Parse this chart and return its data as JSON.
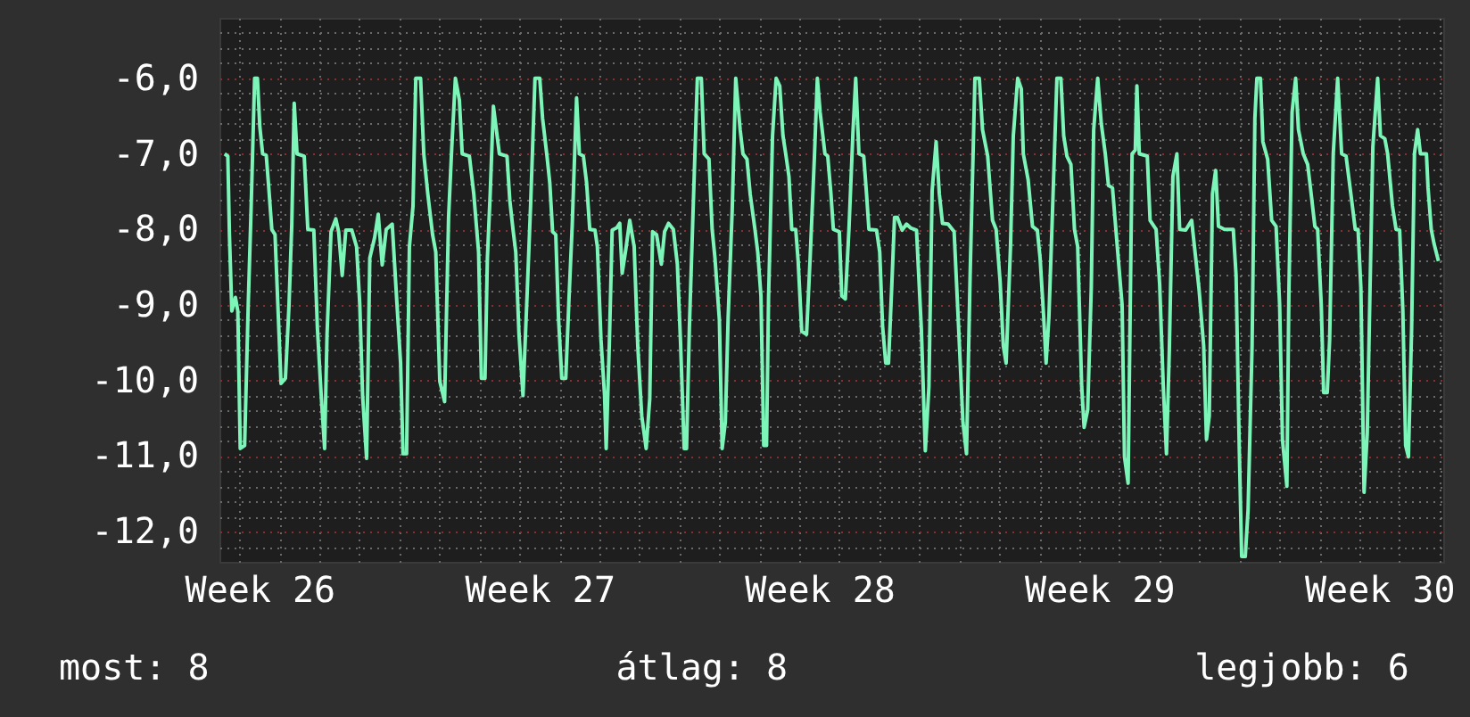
{
  "chart_data": {
    "type": "line",
    "color": "#7df5b9",
    "grid": true,
    "xlim": [
      "--06-24T12:00",
      "--07-25T02:24"
    ],
    "ylim": [
      -12.4,
      -5.2
    ],
    "xticks": [
      {
        "value": "--06-25T12:00",
        "label": "Week 26"
      },
      {
        "value": "--07-02T12:00",
        "label": "Week 27"
      },
      {
        "value": "--07-09T12:00",
        "label": "Week 28"
      },
      {
        "value": "--07-16T12:00",
        "label": "Week 29"
      },
      {
        "value": "--07-23T12:00",
        "label": "Week 30"
      },
      {
        "value": "--06-25",
        "label": null
      },
      {
        "value": "--06-26",
        "label": null
      },
      {
        "value": "--06-27",
        "label": null
      },
      {
        "value": "--06-28",
        "label": null
      },
      {
        "value": "--06-29",
        "label": null
      },
      {
        "value": "--06-30",
        "label": null
      },
      {
        "value": "--07-01",
        "label": null
      },
      {
        "value": "--07-02",
        "label": null
      },
      {
        "value": "--07-03",
        "label": null
      },
      {
        "value": "--07-04",
        "label": null
      },
      {
        "value": "--07-05",
        "label": null
      },
      {
        "value": "--07-06",
        "label": null
      },
      {
        "value": "--07-07",
        "label": null
      },
      {
        "value": "--07-08",
        "label": null
      },
      {
        "value": "--07-09",
        "label": null
      },
      {
        "value": "--07-10",
        "label": null
      },
      {
        "value": "--07-11",
        "label": null
      },
      {
        "value": "--07-12",
        "label": null
      },
      {
        "value": "--07-13",
        "label": null
      },
      {
        "value": "--07-14",
        "label": null
      },
      {
        "value": "--07-15",
        "label": null
      },
      {
        "value": "--07-16",
        "label": null
      },
      {
        "value": "--07-17",
        "label": null
      },
      {
        "value": "--07-18",
        "label": null
      },
      {
        "value": "--07-19",
        "label": null
      },
      {
        "value": "--07-20",
        "label": null
      },
      {
        "value": "--07-21",
        "label": null
      },
      {
        "value": "--07-22",
        "label": null
      },
      {
        "value": "--07-23",
        "label": null
      },
      {
        "value": "--07-24",
        "label": null
      },
      {
        "value": "--07-25",
        "label": null
      }
    ],
    "yticks": [
      {
        "value": -6,
        "label": "-6,0"
      },
      {
        "value": -7,
        "label": "-7,0"
      },
      {
        "value": -8,
        "label": "-8,0"
      },
      {
        "value": -9,
        "label": "-9,0"
      },
      {
        "value": -10,
        "label": "-10,0"
      },
      {
        "value": -11,
        "label": "-11,0"
      },
      {
        "value": -12,
        "label": "-12,0"
      },
      {
        "value": -5.4,
        "label": null
      },
      {
        "value": -5.6,
        "label": null
      },
      {
        "value": -5.8,
        "label": null
      },
      {
        "value": -6.2,
        "label": null
      },
      {
        "value": -6.4,
        "label": null
      },
      {
        "value": -6.6,
        "label": null
      },
      {
        "value": -6.8,
        "label": null
      },
      {
        "value": -7.2,
        "label": null
      },
      {
        "value": -7.4,
        "label": null
      },
      {
        "value": -7.6,
        "label": null
      },
      {
        "value": -7.8,
        "label": null
      },
      {
        "value": -8.2,
        "label": null
      },
      {
        "value": -8.4,
        "label": null
      },
      {
        "value": -8.6,
        "label": null
      },
      {
        "value": -8.8,
        "label": null
      },
      {
        "value": -9.2,
        "label": null
      },
      {
        "value": -9.4,
        "label": null
      },
      {
        "value": -9.6,
        "label": null
      },
      {
        "value": -9.8,
        "label": null
      },
      {
        "value": -10.2,
        "label": null
      },
      {
        "value": -10.4,
        "label": null
      },
      {
        "value": -10.6,
        "label": null
      },
      {
        "value": -10.8,
        "label": null
      },
      {
        "value": -11.2,
        "label": null
      },
      {
        "value": -11.4,
        "label": null
      },
      {
        "value": -11.6,
        "label": null
      },
      {
        "value": -11.8,
        "label": null
      },
      {
        "value": -12.2,
        "label": null
      }
    ],
    "x": [
      "--06-24T15:07",
      "--06-24T17:02",
      "--06-24T18:00",
      "--06-24T19:26",
      "--06-24T21:36",
      "--06-24T23:02",
      "--06-25T00:29",
      "--06-25T03:07",
      "--06-25T05:17",
      "--06-25T06:58",
      "--06-25T09:07",
      "--06-25T10:48",
      "--06-25T12:14",
      "--06-25T13:55",
      "--06-25T16:05",
      "--06-25T17:31",
      "--06-25T19:26",
      "--06-25T21:22",
      "--06-25T23:17",
      "--06-26T00:58",
      "--06-26T03:36",
      "--06-26T05:46",
      "--06-26T07:26",
      "--06-26T08:53",
      "--06-26T10:34",
      "--06-26T14:53",
      "--06-26T17:02",
      "--06-26T20:38",
      "--06-26T22:48",
      "--06-27T00:58",
      "--06-27T03:07",
      "--06-27T04:34",
      "--06-27T06:58",
      "--06-27T09:50",
      "--06-27T11:31",
      "--06-27T13:41",
      "--06-27T15:50",
      "--06-27T19:26",
      "--06-27T22:19",
      "--06-28T00:14",
      "--06-28T01:55",
      "--06-28T04:19",
      "--06-28T06:14",
      "--06-28T09:07",
      "--06-28T11:17",
      "--06-28T13:41",
      "--06-28T16:05",
      "--06-28T19:41",
      "--06-28T22:34",
      "--06-29T00:43",
      "--06-29T02:10",
      "--06-29T04:19",
      "--06-29T06:00",
      "--06-29T08:10",
      "--06-29T09:50",
      "--06-29T12:43",
      "--06-29T14:38",
      "--06-29T17:02",
      "--06-29T19:55",
      "--06-29T21:50",
      "--06-30T00:14",
      "--06-30T03:07",
      "--06-30T05:31",
      "--06-30T07:26",
      "--06-30T09:36",
      "--06-30T12:00",
      "--06-30T13:41",
      "--06-30T18:00",
      "--06-30T20:38",
      "--06-30T23:31",
      "--07-01T01:12",
      "--07-01T03:22",
      "--07-01T04:48",
      "--07-01T06:29",
      "--07-01T08:24",
      "--07-01T12:00",
      "--07-01T16:34",
      "--07-01T18:14",
      "--07-01T20:10",
      "--07-01T21:50",
      "--07-01T23:46",
      "--07-02T02:10",
      "--07-02T04:48",
      "--07-02T06:43",
      "--07-02T09:22",
      "--07-02T12:14",
      "--07-02T13:55",
      "--07-02T16:34",
      "--07-02T18:14",
      "--07-02T19:55",
      "--07-02T21:50",
      "--07-02T23:31",
      "--07-03T01:26",
      "--07-03T03:50",
      "--07-03T05:46",
      "--07-03T07:41",
      "--07-03T10:19",
      "--07-03T12:00",
      "--07-03T14:24",
      "--07-03T16:19",
      "--07-03T18:14",
      "--07-03T21:22",
      "--07-03T22:48",
      "--07-04T00:58",
      "--07-04T03:07",
      "--07-04T04:05",
      "--07-04T06:00",
      "--07-04T07:41",
      "--07-04T10:19",
      "--07-04T12:14",
      "--07-04T13:41",
      "--07-04T15:50",
      "--07-04T18:14",
      "--07-04T20:53",
      "--07-04T23:02",
      "--07-05T01:26",
      "--07-05T04:05",
      "--07-05T06:14",
      "--07-05T07:55",
      "--07-05T10:19",
      "--07-05T13:12",
      "--07-05T15:07",
      "--07-05T17:31",
      "--07-05T20:24",
      "--07-05T22:48",
      "--07-06T00:43",
      "--07-06T02:53",
      "--07-06T04:19",
      "--07-06T06:00",
      "--07-06T08:10",
      "--07-06T10:48",
      "--07-06T13:12",
      "--07-06T14:53",
      "--07-06T17:46",
      "--07-06T19:41",
      "--07-06T21:22",
      "--07-07T00:00",
      "--07-07T01:41",
      "--07-07T03:36",
      "--07-07T05:17",
      "--07-07T07:41",
      "--07-07T09:50",
      "--07-07T12:29",
      "--07-07T14:10",
      "--07-07T16:34",
      "--07-07T18:29",
      "--07-07T21:22",
      "--07-07T23:02",
      "--07-08T00:58",
      "--07-08T02:38",
      "--07-08T04:19",
      "--07-08T05:31",
      "--07-08T07:55",
      "--07-08T10:05",
      "--07-08T12:14",
      "--07-08T14:10",
      "--07-08T15:50",
      "--07-08T17:46",
      "--07-08T19:26",
      "--07-08T21:50",
      "--07-08T23:17",
      "--07-09T01:26",
      "--07-09T04:19",
      "--07-09T06:29",
      "--07-09T09:07",
      "--07-09T10:48",
      "--07-09T12:29",
      "--07-09T15:22",
      "--07-09T17:02",
      "--07-09T18:58",
      "--07-09T20:24",
      "--07-10T00:00",
      "--07-10T01:26",
      "--07-10T03:36",
      "--07-10T05:46",
      "--07-10T08:10",
      "--07-10T09:50",
      "--07-10T11:46",
      "--07-10T14:38",
      "--07-10T16:19",
      "--07-10T17:46",
      "--07-10T22:19",
      "--07-11T00:14",
      "--07-11T01:55",
      "--07-11T03:50",
      "--07-11T05:31",
      "--07-11T07:26",
      "--07-11T09:07",
      "--07-11T10:48",
      "--07-11T13:41",
      "--07-11T16:19",
      "--07-11T18:43",
      "--07-11T22:19",
      "--07-12T01:12",
      "--07-12T03:36",
      "--07-12T05:46",
      "--07-12T07:41",
      "--07-12T10:05",
      "--07-12T12:00",
      "--07-12T13:55",
      "--07-12T17:17",
      "--07-12T20:53",
      "--07-12T23:17",
      "--07-13T02:10",
      "--07-13T04:19",
      "--07-13T06:29",
      "--07-13T09:22",
      "--07-13T12:00",
      "--07-13T13:55",
      "--07-13T17:02",
      "--07-13T19:55",
      "--07-13T22:05",
      "--07-14T00:29",
      "--07-14T02:24",
      "--07-14T04:05",
      "--07-14T06:43",
      "--07-14T08:24",
      "--07-14T11:02",
      "--07-14T13:12",
      "--07-14T14:24",
      "--07-14T17:17",
      "--07-14T19:55",
      "--07-14T22:48",
      "--07-15T00:29",
      "--07-15T02:38",
      "--07-15T04:05",
      "--07-15T05:46",
      "--07-15T07:41",
      "--07-15T10:34",
      "--07-15T12:58",
      "--07-15T14:38",
      "--07-15T16:34",
      "--07-15T18:58",
      "--07-15T21:07",
      "--07-15T23:02",
      "--07-16T01:26",
      "--07-16T02:53",
      "--07-16T05:02",
      "--07-16T07:12",
      "--07-16T08:38",
      "--07-16T11:02",
      "--07-16T13:12",
      "--07-16T15:36",
      "--07-16T17:31",
      "--07-16T19:55",
      "--07-16T22:48",
      "--07-17T01:41",
      "--07-17T03:07",
      "--07-17T05:17",
      "--07-17T07:41",
      "--07-17T09:36",
      "--07-17T10:34",
      "--07-17T12:00",
      "--07-17T16:48",
      "--07-17T18:29",
      "--07-17T22:05",
      "--07-18T00:14",
      "--07-18T02:24",
      "--07-18T04:19",
      "--07-18T06:00",
      "--07-18T08:10",
      "--07-18T10:34",
      "--07-18T12:14",
      "--07-18T15:50",
      "--07-18T19:26",
      "--07-18T21:07",
      "--07-18T23:46",
      "--07-19T02:38",
      "--07-19T04:19",
      "--07-19T06:00",
      "--07-19T07:55",
      "--07-19T09:50",
      "--07-19T11:31",
      "--07-19T15:07",
      "--07-19T20:24",
      "--07-19T22:05",
      "--07-20T00:00",
      "--07-20T01:26",
      "--07-20T03:36",
      "--07-20T05:17",
      "--07-20T07:41",
      "--07-20T09:22",
      "--07-20T10:34",
      "--07-20T12:43",
      "--07-20T14:10",
      "--07-20T17:02",
      "--07-20T19:26",
      "--07-20T22:05",
      "--07-21T00:14",
      "--07-21T01:55",
      "--07-21T04:34",
      "--07-21T05:46",
      "--07-21T07:41",
      "--07-21T09:50",
      "--07-21T11:31",
      "--07-21T14:24",
      "--07-21T17:02",
      "--07-21T18:43",
      "--07-21T21:22",
      "--07-21T23:02",
      "--07-22T01:12",
      "--07-22T02:38",
      "--07-22T04:48",
      "--07-22T06:14",
      "--07-22T08:24",
      "--07-22T11:02",
      "--07-22T13:26",
      "--07-22T16:05",
      "--07-22T18:58",
      "--07-22T21:36",
      "--07-22T23:17",
      "--07-23T00:58",
      "--07-23T02:53",
      "--07-23T04:48",
      "--07-23T06:29",
      "--07-23T08:10",
      "--07-23T11:02",
      "--07-23T12:43",
      "--07-23T15:22",
      "--07-23T17:02",
      "--07-23T19:55",
      "--07-23T22:05",
      "--07-24T00:14",
      "--07-24T02:10",
      "--07-24T03:50",
      "--07-24T05:31",
      "--07-24T07:26",
      "--07-24T09:07",
      "--07-24T11:02",
      "--07-24T12:43",
      "--07-24T16:19",
      "--07-24T17:17",
      "--07-24T19:12",
      "--07-24T20:53",
      "--07-24T23:31"
    ],
    "values": [
      -7.0,
      -7.03,
      -8.07,
      -9.08,
      -8.9,
      -9.08,
      -10.9,
      -10.86,
      -9.0,
      -7.76,
      -6.0,
      -6.0,
      -6.64,
      -7.0,
      -7.02,
      -7.42,
      -8.0,
      -8.07,
      -9.12,
      -10.04,
      -9.97,
      -9.0,
      -7.92,
      -6.33,
      -7.0,
      -7.03,
      -8.0,
      -8.01,
      -9.31,
      -10.16,
      -10.9,
      -9.39,
      -8.03,
      -7.86,
      -8.03,
      -8.61,
      -8.01,
      -8.01,
      -8.23,
      -9.0,
      -10.2,
      -11.03,
      -8.38,
      -8.11,
      -7.8,
      -8.47,
      -8.0,
      -7.93,
      -9.0,
      -9.77,
      -10.97,
      -10.97,
      -8.23,
      -7.69,
      -6.0,
      -6.0,
      -7.0,
      -7.53,
      -8.07,
      -8.3,
      -10.01,
      -10.28,
      -7.84,
      -6.91,
      -6.0,
      -6.29,
      -7.0,
      -7.03,
      -7.53,
      -8.3,
      -9.97,
      -9.97,
      -8.38,
      -7.53,
      -6.37,
      -7.0,
      -7.03,
      -7.61,
      -8.0,
      -8.3,
      -9.39,
      -10.2,
      -8.77,
      -7.69,
      -6.0,
      -6.0,
      -6.53,
      -7.03,
      -7.38,
      -8.03,
      -8.07,
      -9.19,
      -9.97,
      -9.97,
      -8.92,
      -7.96,
      -6.26,
      -7.0,
      -7.03,
      -7.38,
      -8.0,
      -8.01,
      -8.23,
      -9.46,
      -10.2,
      -10.9,
      -9.5,
      -8.01,
      -7.98,
      -7.92,
      -8.58,
      -8.27,
      -7.88,
      -8.23,
      -9.54,
      -10.47,
      -10.9,
      -10.24,
      -8.03,
      -8.07,
      -8.46,
      -8.03,
      -7.92,
      -8.0,
      -8.46,
      -9.5,
      -10.9,
      -10.9,
      -9.31,
      -7.8,
      -6.0,
      -6.0,
      -7.0,
      -7.07,
      -8.0,
      -8.38,
      -9.19,
      -10.9,
      -10.55,
      -9.16,
      -7.76,
      -6.0,
      -6.68,
      -7.0,
      -7.07,
      -7.53,
      -8.0,
      -8.3,
      -8.88,
      -10.86,
      -10.86,
      -8.92,
      -6.76,
      -6.0,
      -6.1,
      -6.76,
      -7.0,
      -7.3,
      -8.0,
      -8.0,
      -8.42,
      -9.35,
      -9.39,
      -8.38,
      -7.0,
      -6.0,
      -6.45,
      -7.0,
      -7.03,
      -7.53,
      -8.0,
      -8.03,
      -8.88,
      -8.92,
      -8.0,
      -6.72,
      -6.0,
      -7.0,
      -7.03,
      -7.53,
      -8.0,
      -8.01,
      -8.3,
      -9.27,
      -9.77,
      -9.77,
      -8.77,
      -7.84,
      -7.84,
      -8.01,
      -7.93,
      -7.98,
      -8.01,
      -9.31,
      -10.93,
      -10.08,
      -7.49,
      -6.84,
      -7.53,
      -7.92,
      -7.93,
      -8.03,
      -9.16,
      -10.55,
      -10.97,
      -8.61,
      -6.0,
      -6.0,
      -6.68,
      -7.03,
      -7.88,
      -8.0,
      -8.69,
      -9.54,
      -9.77,
      -8.23,
      -6.76,
      -6.0,
      -6.14,
      -7.0,
      -7.34,
      -7.96,
      -8.01,
      -8.38,
      -9.16,
      -9.77,
      -9.16,
      -7.92,
      -6.0,
      -6.0,
      -6.76,
      -7.03,
      -7.14,
      -8.0,
      -8.23,
      -10.08,
      -10.62,
      -10.39,
      -8.77,
      -6.68,
      -6.0,
      -6.6,
      -7.0,
      -7.42,
      -7.45,
      -8.23,
      -9.0,
      -11.01,
      -11.36,
      -7.0,
      -6.95,
      -6.1,
      -7.0,
      -7.03,
      -7.88,
      -8.0,
      -8.73,
      -10.08,
      -10.97,
      -9.62,
      -7.3,
      -7.0,
      -8.0,
      -8.01,
      -7.88,
      -8.23,
      -8.77,
      -9.54,
      -10.78,
      -10.47,
      -7.53,
      -7.22,
      -7.96,
      -8.0,
      -8.0,
      -8.61,
      -10.9,
      -12.33,
      -12.33,
      -11.71,
      -9.54,
      -6.53,
      -6.0,
      -6.0,
      -6.84,
      -7.07,
      -7.88,
      -7.96,
      -9.0,
      -10.78,
      -11.4,
      -8.85,
      -6.45,
      -6.0,
      -6.68,
      -7.0,
      -7.14,
      -7.45,
      -7.96,
      -8.0,
      -9.0,
      -10.16,
      -10.16,
      -9.46,
      -7.0,
      -6.0,
      -7.0,
      -7.03,
      -7.53,
      -8.0,
      -8.0,
      -8.77,
      -11.48,
      -10.7,
      -8.77,
      -6.91,
      -6.0,
      -6.76,
      -6.8,
      -7.0,
      -7.69,
      -8.0,
      -8.01,
      -9.08,
      -10.86,
      -11.01,
      -9.31,
      -7.0,
      -6.68,
      -7.0,
      -7.0,
      -7.45,
      -8.0,
      -8.19,
      -8.42
    ],
    "annotations": [
      "most: 8",
      "átlag: 8",
      "legjobb: 6"
    ]
  }
}
